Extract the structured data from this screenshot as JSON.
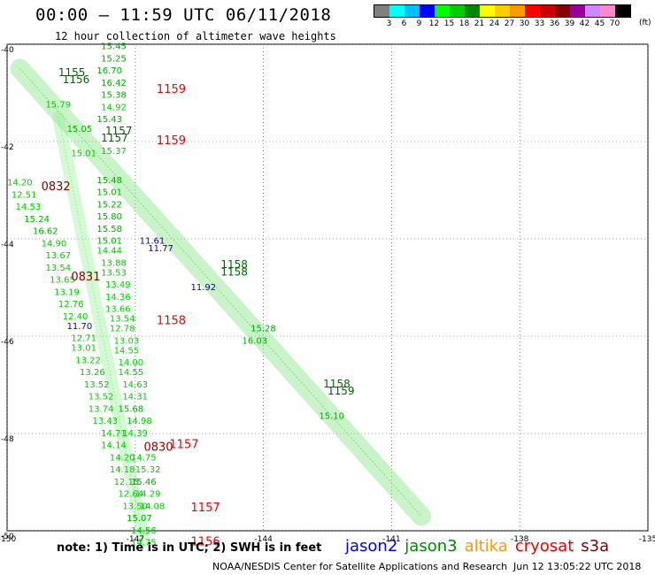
{
  "header": {
    "title": "00:00 – 11:59 UTC 06/11/2018",
    "subtitle": "12 hour collection of altimeter wave heights"
  },
  "colorbar": {
    "colors": [
      "#808080",
      "#00ffff",
      "#00bfff",
      "#0000ff",
      "#00ff00",
      "#00cc00",
      "#008800",
      "#ffff00",
      "#ffcc00",
      "#ff9900",
      "#ff0000",
      "#cc0000",
      "#880000",
      "#990099",
      "#cc88ff",
      "#ff88cc",
      "#000000"
    ],
    "labels": [
      "3",
      "6",
      "9",
      "12",
      "15",
      "18",
      "21",
      "24",
      "27",
      "30",
      "33",
      "36",
      "39",
      "42",
      "45",
      "70"
    ],
    "unit": "(ft)"
  },
  "chart_data": {
    "type": "scatter",
    "title": "12 hour collection of altimeter wave heights",
    "xlim": [
      -150,
      -135
    ],
    "ylim": [
      -50,
      -40
    ],
    "xticks": [
      -150,
      -147,
      -144,
      -141,
      -138,
      -135
    ],
    "yticks": [
      -40,
      -42,
      -44,
      -46,
      -48,
      -50
    ],
    "grid": true,
    "value_labels": [
      {
        "lon": -147.8,
        "lat": -40.1,
        "text": "15.45",
        "color": "#00aa00"
      },
      {
        "lon": -147.8,
        "lat": -40.35,
        "text": "15.25",
        "color": "#00aa00"
      },
      {
        "lon": -147.9,
        "lat": -40.6,
        "text": "16.70",
        "color": "#00aa00"
      },
      {
        "lon": -147.8,
        "lat": -40.85,
        "text": "16.42",
        "color": "#00aa00"
      },
      {
        "lon": -147.8,
        "lat": -41.1,
        "text": "15.38",
        "color": "#00aa00"
      },
      {
        "lon": -149.1,
        "lat": -41.3,
        "text": "15.79",
        "color": "#00cc00"
      },
      {
        "lon": -147.8,
        "lat": -41.35,
        "text": "14.92",
        "color": "#00cc00"
      },
      {
        "lon": -147.9,
        "lat": -41.6,
        "text": "15.43",
        "color": "#00aa00"
      },
      {
        "lon": -148.6,
        "lat": -41.8,
        "text": "15.05",
        "color": "#00aa00"
      },
      {
        "lon": -147.8,
        "lat": -42.25,
        "text": "15.37",
        "color": "#00cc00"
      },
      {
        "lon": -148.5,
        "lat": -42.3,
        "text": "15.01",
        "color": "#00cc00"
      },
      {
        "lon": -150.0,
        "lat": -42.9,
        "text": "14.20",
        "color": "#00cc00"
      },
      {
        "lon": -147.9,
        "lat": -42.85,
        "text": "15.48",
        "color": "#00aa00"
      },
      {
        "lon": -147.9,
        "lat": -43.1,
        "text": "15.01",
        "color": "#00aa00"
      },
      {
        "lon": -149.9,
        "lat": -43.15,
        "text": "12.51",
        "color": "#00cc00"
      },
      {
        "lon": -147.9,
        "lat": -43.35,
        "text": "15.22",
        "color": "#00aa00"
      },
      {
        "lon": -149.8,
        "lat": -43.4,
        "text": "14.53",
        "color": "#00cc00"
      },
      {
        "lon": -147.9,
        "lat": -43.6,
        "text": "15.80",
        "color": "#00aa00"
      },
      {
        "lon": -149.6,
        "lat": -43.65,
        "text": "15.24",
        "color": "#00aa00"
      },
      {
        "lon": -147.9,
        "lat": -43.85,
        "text": "15.58",
        "color": "#00aa00"
      },
      {
        "lon": -149.4,
        "lat": -43.9,
        "text": "16.62",
        "color": "#00aa00"
      },
      {
        "lon": -147.9,
        "lat": -44.1,
        "text": "15.01",
        "color": "#00aa00"
      },
      {
        "lon": -146.9,
        "lat": -44.1,
        "text": "11.61",
        "color": "#0000cc"
      },
      {
        "lon": -149.2,
        "lat": -44.15,
        "text": "14.90",
        "color": "#00cc00"
      },
      {
        "lon": -146.7,
        "lat": -44.25,
        "text": "11.77",
        "color": "#0000cc"
      },
      {
        "lon": -147.9,
        "lat": -44.3,
        "text": "14.44",
        "color": "#00cc00"
      },
      {
        "lon": -149.1,
        "lat": -44.4,
        "text": "13.67",
        "color": "#00cc00"
      },
      {
        "lon": -147.8,
        "lat": -44.55,
        "text": "13.88",
        "color": "#00cc00"
      },
      {
        "lon": -149.1,
        "lat": -44.65,
        "text": "13.54",
        "color": "#00cc00"
      },
      {
        "lon": -147.8,
        "lat": -44.75,
        "text": "13.53",
        "color": "#00cc00"
      },
      {
        "lon": -149.0,
        "lat": -44.9,
        "text": "13.65",
        "color": "#00cc00"
      },
      {
        "lon": -147.7,
        "lat": -45.0,
        "text": "13.49",
        "color": "#00cc00"
      },
      {
        "lon": -145.7,
        "lat": -45.05,
        "text": "11.92",
        "color": "#0000cc"
      },
      {
        "lon": -148.9,
        "lat": -45.15,
        "text": "13.19",
        "color": "#00cc00"
      },
      {
        "lon": -147.7,
        "lat": -45.25,
        "text": "14.36",
        "color": "#00cc00"
      },
      {
        "lon": -148.8,
        "lat": -45.4,
        "text": "12.76",
        "color": "#00cc00"
      },
      {
        "lon": -147.7,
        "lat": -45.5,
        "text": "13.66",
        "color": "#00cc00"
      },
      {
        "lon": -148.7,
        "lat": -45.65,
        "text": "12.40",
        "color": "#00cc00"
      },
      {
        "lon": -147.6,
        "lat": -45.7,
        "text": "13.54",
        "color": "#00cc00"
      },
      {
        "lon": -148.6,
        "lat": -45.85,
        "text": "11.70",
        "color": "#0000cc"
      },
      {
        "lon": -147.6,
        "lat": -45.9,
        "text": "12.78",
        "color": "#00cc00"
      },
      {
        "lon": -144.3,
        "lat": -45.9,
        "text": "15.28",
        "color": "#00aa00"
      },
      {
        "lon": -144.5,
        "lat": -46.15,
        "text": "16.03",
        "color": "#00aa00"
      },
      {
        "lon": -148.5,
        "lat": -46.1,
        "text": "12.71",
        "color": "#00cc00"
      },
      {
        "lon": -147.5,
        "lat": -46.15,
        "text": "13.03",
        "color": "#00cc00"
      },
      {
        "lon": -148.5,
        "lat": -46.3,
        "text": "13.01",
        "color": "#00cc00"
      },
      {
        "lon": -147.5,
        "lat": -46.35,
        "text": "14.55",
        "color": "#00cc00"
      },
      {
        "lon": -148.4,
        "lat": -46.55,
        "text": "13.22",
        "color": "#00cc00"
      },
      {
        "lon": -147.4,
        "lat": -46.6,
        "text": "14.00",
        "color": "#00cc00"
      },
      {
        "lon": -148.3,
        "lat": -46.8,
        "text": "13.26",
        "color": "#00cc00"
      },
      {
        "lon": -147.4,
        "lat": -46.8,
        "text": "14.55",
        "color": "#00cc00"
      },
      {
        "lon": -148.2,
        "lat": -47.05,
        "text": "13.52",
        "color": "#00cc00"
      },
      {
        "lon": -147.3,
        "lat": -47.05,
        "text": "14.63",
        "color": "#00cc00"
      },
      {
        "lon": -148.1,
        "lat": -47.3,
        "text": "13.52",
        "color": "#00cc00"
      },
      {
        "lon": -147.3,
        "lat": -47.3,
        "text": "14.31",
        "color": "#00cc00"
      },
      {
        "lon": -148.1,
        "lat": -47.55,
        "text": "13.74",
        "color": "#00cc00"
      },
      {
        "lon": -147.4,
        "lat": -47.55,
        "text": "15.68",
        "color": "#00aa00"
      },
      {
        "lon": -142.7,
        "lat": -47.7,
        "text": "15.10",
        "color": "#00aa00"
      },
      {
        "lon": -148.0,
        "lat": -47.8,
        "text": "13.43",
        "color": "#00cc00"
      },
      {
        "lon": -147.2,
        "lat": -47.8,
        "text": "14.98",
        "color": "#00cc00"
      },
      {
        "lon": -147.8,
        "lat": -48.05,
        "text": "14.71",
        "color": "#00cc00"
      },
      {
        "lon": -147.3,
        "lat": -48.05,
        "text": "14.39",
        "color": "#00cc00"
      },
      {
        "lon": -147.8,
        "lat": -48.3,
        "text": "14.14",
        "color": "#00cc00"
      },
      {
        "lon": -147.6,
        "lat": -48.55,
        "text": "14.20",
        "color": "#00cc00"
      },
      {
        "lon": -147.1,
        "lat": -48.55,
        "text": "14.75",
        "color": "#00cc00"
      },
      {
        "lon": -147.6,
        "lat": -48.8,
        "text": "14.18",
        "color": "#00cc00"
      },
      {
        "lon": -147.0,
        "lat": -48.8,
        "text": "15.32",
        "color": "#00cc00"
      },
      {
        "lon": -147.5,
        "lat": -49.05,
        "text": "12.15",
        "color": "#00cc00"
      },
      {
        "lon": -147.1,
        "lat": -49.05,
        "text": "15.46",
        "color": "#00aa00"
      },
      {
        "lon": -147.4,
        "lat": -49.3,
        "text": "12.64",
        "color": "#00cc00"
      },
      {
        "lon": -147.0,
        "lat": -49.3,
        "text": "14.29",
        "color": "#00cc00"
      },
      {
        "lon": -147.3,
        "lat": -49.55,
        "text": "13.50",
        "color": "#00cc00"
      },
      {
        "lon": -146.9,
        "lat": -49.55,
        "text": "14.08",
        "color": "#00cc00"
      },
      {
        "lon": -147.2,
        "lat": -49.8,
        "text": "15.07",
        "color": "#00aa00"
      },
      {
        "lon": -147.1,
        "lat": -50.05,
        "text": "14.56",
        "color": "#00cc00"
      },
      {
        "lon": -147.1,
        "lat": -50.3,
        "text": "14.75",
        "color": "#00cc00"
      }
    ],
    "time_labels": [
      {
        "lon": -148.8,
        "lat": -40.65,
        "text": "1155",
        "color": "#006600",
        "size": 12
      },
      {
        "lon": -148.7,
        "lat": -40.8,
        "text": "1156",
        "color": "#006600",
        "size": 12
      },
      {
        "lon": -146.5,
        "lat": -41.0,
        "text": "1159",
        "color": "#ee0000",
        "size": 13
      },
      {
        "lon": -147.7,
        "lat": -41.85,
        "text": "1157",
        "color": "#006600",
        "size": 12
      },
      {
        "lon": -147.8,
        "lat": -42.0,
        "text": "1157",
        "color": "#006600",
        "size": 12
      },
      {
        "lon": -146.5,
        "lat": -42.05,
        "text": "1159",
        "color": "#ee0000",
        "size": 13
      },
      {
        "lon": -149.2,
        "lat": -43.0,
        "text": "0832",
        "color": "#880000",
        "size": 13
      },
      {
        "lon": -145.0,
        "lat": -44.6,
        "text": "1158",
        "color": "#006600",
        "size": 12
      },
      {
        "lon": -145.0,
        "lat": -44.75,
        "text": "1158",
        "color": "#006600",
        "size": 12
      },
      {
        "lon": -148.5,
        "lat": -44.85,
        "text": "0831",
        "color": "#880000",
        "size": 13
      },
      {
        "lon": -146.5,
        "lat": -45.75,
        "text": "1158",
        "color": "#ee0000",
        "size": 13
      },
      {
        "lon": -142.6,
        "lat": -47.05,
        "text": "1158",
        "color": "#006600",
        "size": 12
      },
      {
        "lon": -142.5,
        "lat": -47.2,
        "text": "1159",
        "color": "#006600",
        "size": 12
      },
      {
        "lon": -146.8,
        "lat": -48.35,
        "text": "0830",
        "color": "#880000",
        "size": 13
      },
      {
        "lon": -146.2,
        "lat": -48.3,
        "text": "1157",
        "color": "#ee0000",
        "size": 13
      },
      {
        "lon": -145.7,
        "lat": -49.6,
        "text": "1157",
        "color": "#ee0000",
        "size": 13
      },
      {
        "lon": -145.7,
        "lat": -50.3,
        "text": "1156",
        "color": "#ee0000",
        "size": 13
      }
    ]
  },
  "footer": {
    "note": "note: 1) Time is in UTC; 2) SWH is in feet",
    "satellites": [
      {
        "name": "jason2",
        "color": "#0000ee"
      },
      {
        "name": "jason3",
        "color": "#008800"
      },
      {
        "name": "altika",
        "color": "#ff9900"
      },
      {
        "name": "cryosat",
        "color": "#ee0000"
      },
      {
        "name": "s3a",
        "color": "#880000"
      }
    ],
    "credit": "NOAA/NESDIS Center for Satellite Applications and Research",
    "timestamp": "Jun 12 13:05:22 UTC 2018"
  }
}
